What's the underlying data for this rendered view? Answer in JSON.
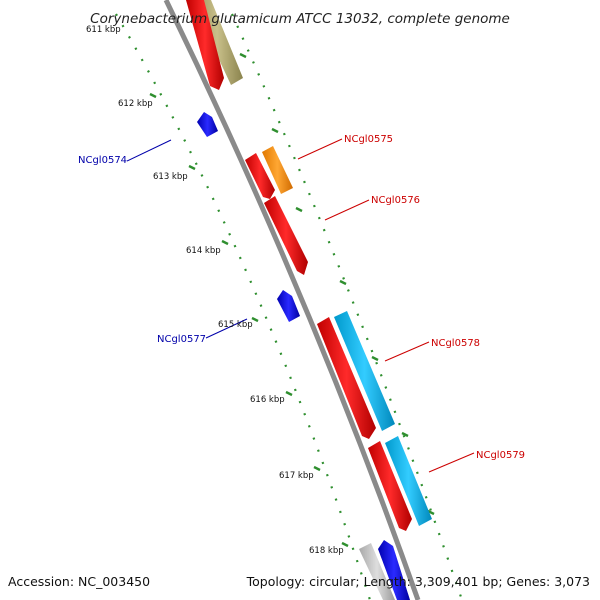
{
  "title": "Corynebacterium glutamicum ATCC 13032, complete genome",
  "footer": {
    "accession": "Accession: NC_003450",
    "summary": "Topology: circular; Length: 3,309,401 bp; Genes: 3,073"
  },
  "ticks": [
    "611 kbp",
    "612 kbp",
    "613 kbp",
    "614 kbp",
    "615 kbp",
    "616 kbp",
    "617 kbp",
    "618 kbp"
  ],
  "gene_labels": {
    "ncgl0574": "NCgl0574",
    "ncgl0575": "NCgl0575",
    "ncgl0576": "NCgl0576",
    "ncgl0577": "NCgl0577",
    "ncgl0578": "NCgl0578",
    "ncgl0579": "NCgl0579"
  },
  "colors": {
    "backbone": "#8a8a8a",
    "tick_dots": "#2f8f2f",
    "forward_cds": "#ff0000",
    "reverse_cds": "#0000ff",
    "orange_feature": "#ff9900",
    "cyan_feature": "#00bfff",
    "olive_feature": "#b5ad6f",
    "grey_feature": "#c8c8c8",
    "label_red": "#cc0000",
    "label_blue": "#0000aa"
  }
}
